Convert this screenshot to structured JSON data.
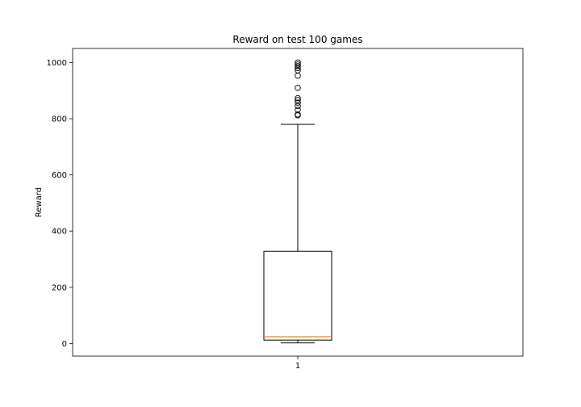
{
  "chart_data": {
    "type": "box",
    "title": "Reward on test 100 games",
    "xlabel": "",
    "ylabel": "Reward",
    "categories": [
      "1"
    ],
    "ylim": [
      -45,
      1050
    ],
    "yticks": [
      0,
      200,
      400,
      600,
      800,
      1000
    ],
    "boxes": [
      {
        "category": "1",
        "whisker_low": 2,
        "q1": 12,
        "median": 24,
        "q3": 328,
        "whisker_high": 780,
        "outliers": [
          812,
          815,
          832,
          845,
          857,
          866,
          873,
          910,
          953,
          972,
          980,
          987,
          993,
          1000
        ]
      }
    ],
    "grid": false,
    "colors": {
      "median": "#ff7f0e",
      "box": "#000000",
      "background": "#ffffff"
    }
  }
}
